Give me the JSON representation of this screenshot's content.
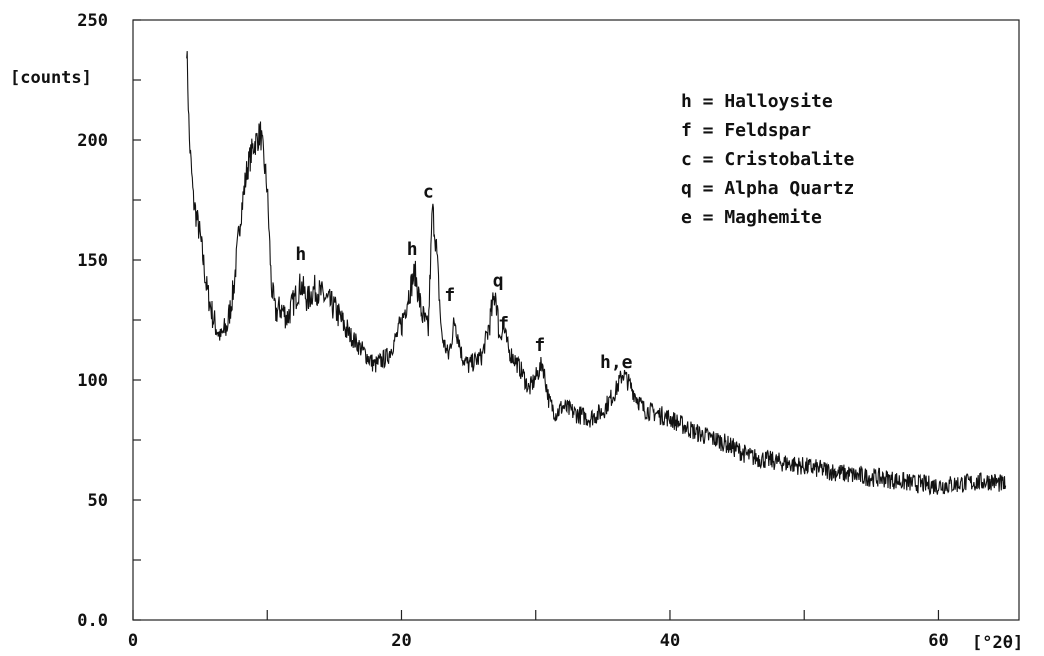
{
  "chart_data": {
    "type": "line",
    "title": "",
    "xlabel": "[°2θ]",
    "ylabel": "[counts]",
    "xlim": [
      0,
      66
    ],
    "ylim": [
      0,
      250
    ],
    "x_ticks": [
      0,
      10,
      20,
      30,
      40,
      50,
      60
    ],
    "x_tick_labels": [
      "0",
      "",
      "20",
      "",
      "40",
      "",
      "60"
    ],
    "y_ticks": [
      0,
      25,
      50,
      75,
      100,
      125,
      150,
      175,
      200,
      225,
      250
    ],
    "y_tick_labels": [
      "0.0",
      "",
      "50",
      "",
      "100",
      "",
      "150",
      "",
      "200",
      "",
      "250"
    ],
    "grid": false,
    "series": [
      {
        "x": [
          4.0,
          4.2,
          4.5,
          5.0,
          5.5,
          6.0,
          6.5,
          7.0,
          7.5,
          8.0,
          8.5,
          9.0,
          9.5,
          10.0,
          10.3,
          10.6,
          11.0,
          11.5,
          12.0,
          12.5,
          13.0,
          13.5,
          14.0,
          14.5,
          15.0,
          16.0,
          17.0,
          18.0,
          19.0,
          20.0,
          20.5,
          21.0,
          21.5,
          22.0,
          22.3,
          22.6,
          23.0,
          23.5,
          24.0,
          24.5,
          25.0,
          26.0,
          26.5,
          27.0,
          27.3,
          27.6,
          28.0,
          28.5,
          29.0,
          29.5,
          30.0,
          30.5,
          31.0,
          31.5,
          32.0,
          33.0,
          34.0,
          35.0,
          36.0,
          36.5,
          37.0,
          38.0,
          40.0,
          42.0,
          44.0,
          46.0,
          48.0,
          50.0,
          52.0,
          54.0,
          56.0,
          58.0,
          60.0,
          62.0,
          64.0,
          65.0
        ],
        "values": [
          240,
          200,
          175,
          160,
          138,
          125,
          118,
          122,
          138,
          168,
          188,
          198,
          203,
          180,
          140,
          128,
          130,
          126,
          133,
          140,
          133,
          138,
          136,
          133,
          130,
          120,
          113,
          106,
          110,
          123,
          135,
          145,
          128,
          120,
          172,
          155,
          118,
          110,
          125,
          110,
          106,
          110,
          122,
          137,
          118,
          122,
          112,
          108,
          103,
          96,
          101,
          107,
          91,
          86,
          89,
          86,
          84,
          87,
          96,
          103,
          98,
          88,
          84,
          78,
          74,
          68,
          66,
          64,
          62,
          60,
          59,
          57,
          56,
          57,
          58,
          56
        ]
      }
    ],
    "legend": [
      "h = Halloysite",
      "f = Feldspar",
      "c = Cristobalite",
      "q = Alpha Quartz",
      "e = Maghemite"
    ],
    "legend_position": "top-right",
    "annotations": [
      {
        "text": "h",
        "x": 12.5,
        "y": 150
      },
      {
        "text": "h",
        "x": 20.8,
        "y": 152
      },
      {
        "text": "c",
        "x": 22.0,
        "y": 176
      },
      {
        "text": "f",
        "x": 23.6,
        "y": 133
      },
      {
        "text": "q",
        "x": 27.2,
        "y": 139
      },
      {
        "text": "f",
        "x": 27.6,
        "y": 121
      },
      {
        "text": "f",
        "x": 30.3,
        "y": 112
      },
      {
        "text": "h,e",
        "x": 36.0,
        "y": 105
      }
    ]
  }
}
